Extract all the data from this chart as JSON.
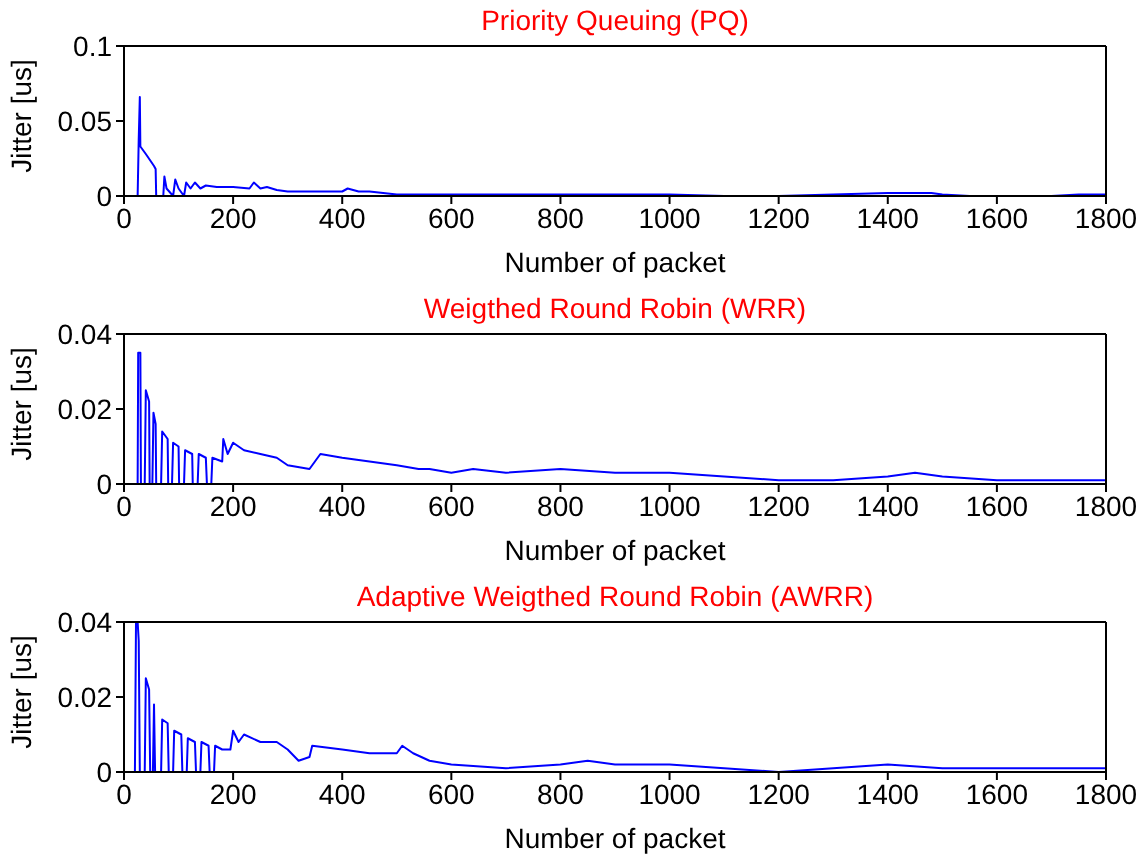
{
  "chart_data": [
    {
      "type": "line",
      "title": "Priority Queuing (PQ)",
      "xlabel": "Number of packet",
      "ylabel": "Jitter [us]",
      "xlim": [
        0,
        1800
      ],
      "xticks": [
        0,
        200,
        400,
        600,
        800,
        1000,
        1200,
        1400,
        1600,
        1800
      ],
      "ylim": [
        0,
        0.1
      ],
      "yticks": [
        0,
        0.05,
        0.1
      ],
      "x": [
        0,
        25,
        27,
        29,
        30,
        40,
        55,
        58,
        59,
        72,
        74,
        78,
        90,
        94,
        100,
        110,
        114,
        122,
        130,
        140,
        150,
        170,
        200,
        230,
        238,
        250,
        262,
        280,
        300,
        320,
        350,
        400,
        410,
        430,
        450,
        500,
        550,
        600,
        650,
        700,
        750,
        800,
        900,
        1000,
        1100,
        1200,
        1300,
        1400,
        1430,
        1480,
        1500,
        1550,
        1700,
        1750,
        1800
      ],
      "series": [
        {
          "color": "#0000ff",
          "values": [
            0,
            0,
            0.038,
            0.066,
            0.033,
            0.028,
            0.02,
            0.018,
            0,
            0,
            0.013,
            0.005,
            0,
            0.011,
            0.005,
            0,
            0.009,
            0.005,
            0.009,
            0.005,
            0.007,
            0.006,
            0.006,
            0.005,
            0.009,
            0.005,
            0.006,
            0.004,
            0.003,
            0.003,
            0.003,
            0.003,
            0.005,
            0.003,
            0.003,
            0.001,
            0.001,
            0.001,
            0.001,
            0.001,
            0.001,
            0.001,
            0.001,
            0.001,
            0,
            0,
            0.001,
            0.002,
            0.002,
            0.002,
            0.001,
            0,
            0,
            0.001,
            0.001
          ]
        }
      ]
    },
    {
      "type": "line",
      "title": "Weigthed Round Robin (WRR)",
      "xlabel": "Number of packet",
      "ylabel": "Jitter [us]",
      "xlim": [
        0,
        1800
      ],
      "xticks": [
        0,
        200,
        400,
        600,
        800,
        1000,
        1200,
        1400,
        1600,
        1800
      ],
      "ylim": [
        0,
        0.04
      ],
      "yticks": [
        0,
        0.02,
        0.04
      ],
      "x": [
        0,
        25,
        26,
        30,
        31,
        38,
        40,
        46,
        47,
        52,
        54,
        58,
        59,
        68,
        70,
        80,
        81,
        88,
        90,
        100,
        101,
        110,
        112,
        125,
        126,
        135,
        137,
        150,
        152,
        160,
        162,
        180,
        182,
        190,
        200,
        220,
        250,
        280,
        300,
        340,
        350,
        360,
        400,
        450,
        500,
        540,
        560,
        600,
        640,
        700,
        800,
        900,
        1000,
        1100,
        1200,
        1300,
        1400,
        1450,
        1500,
        1600,
        1700,
        1800
      ],
      "series": [
        {
          "color": "#0000ff",
          "values": [
            0,
            0,
            0.035,
            0.035,
            0,
            0,
            0.025,
            0.022,
            0,
            0,
            0.019,
            0.016,
            0,
            0,
            0.014,
            0.012,
            0,
            0,
            0.011,
            0.01,
            0,
            0,
            0.009,
            0.008,
            0,
            0,
            0.008,
            0.007,
            0,
            0,
            0.007,
            0.006,
            0.012,
            0.008,
            0.011,
            0.009,
            0.008,
            0.007,
            0.005,
            0.004,
            0.006,
            0.008,
            0.007,
            0.006,
            0.005,
            0.004,
            0.004,
            0.003,
            0.004,
            0.003,
            0.004,
            0.003,
            0.003,
            0.002,
            0.001,
            0.001,
            0.002,
            0.003,
            0.002,
            0.001,
            0.001,
            0.001
          ]
        }
      ]
    },
    {
      "type": "line",
      "title": "Adaptive Weigthed Round Robin (AWRR)",
      "xlabel": "Number of packet",
      "ylabel": "Jitter [us]",
      "xlim": [
        0,
        1800
      ],
      "xticks": [
        0,
        200,
        400,
        600,
        800,
        1000,
        1200,
        1400,
        1600,
        1800
      ],
      "ylim": [
        0,
        0.04
      ],
      "yticks": [
        0,
        0.02,
        0.04
      ],
      "x": [
        0,
        20,
        22,
        25,
        27,
        29,
        38,
        40,
        46,
        48,
        53,
        55,
        57,
        68,
        70,
        80,
        82,
        90,
        92,
        105,
        107,
        115,
        117,
        130,
        132,
        140,
        142,
        155,
        157,
        165,
        167,
        180,
        195,
        200,
        210,
        220,
        250,
        280,
        300,
        320,
        340,
        345,
        400,
        450,
        500,
        510,
        530,
        560,
        600,
        700,
        800,
        850,
        900,
        1000,
        1100,
        1200,
        1300,
        1400,
        1500,
        1600,
        1700,
        1800
      ],
      "series": [
        {
          "color": "#0000ff",
          "values": [
            0,
            0,
            0.04,
            0.04,
            0.035,
            0,
            0,
            0.025,
            0.022,
            0,
            0,
            0.018,
            0,
            0,
            0.014,
            0.013,
            0,
            0,
            0.011,
            0.01,
            0,
            0,
            0.009,
            0.008,
            0,
            0,
            0.008,
            0.007,
            0,
            0,
            0.007,
            0.006,
            0.006,
            0.011,
            0.008,
            0.01,
            0.008,
            0.008,
            0.006,
            0.003,
            0.004,
            0.007,
            0.006,
            0.005,
            0.005,
            0.007,
            0.005,
            0.003,
            0.002,
            0.001,
            0.002,
            0.003,
            0.002,
            0.002,
            0.001,
            0,
            0.001,
            0.002,
            0.001,
            0.001,
            0.001,
            0.001
          ]
        }
      ]
    }
  ]
}
